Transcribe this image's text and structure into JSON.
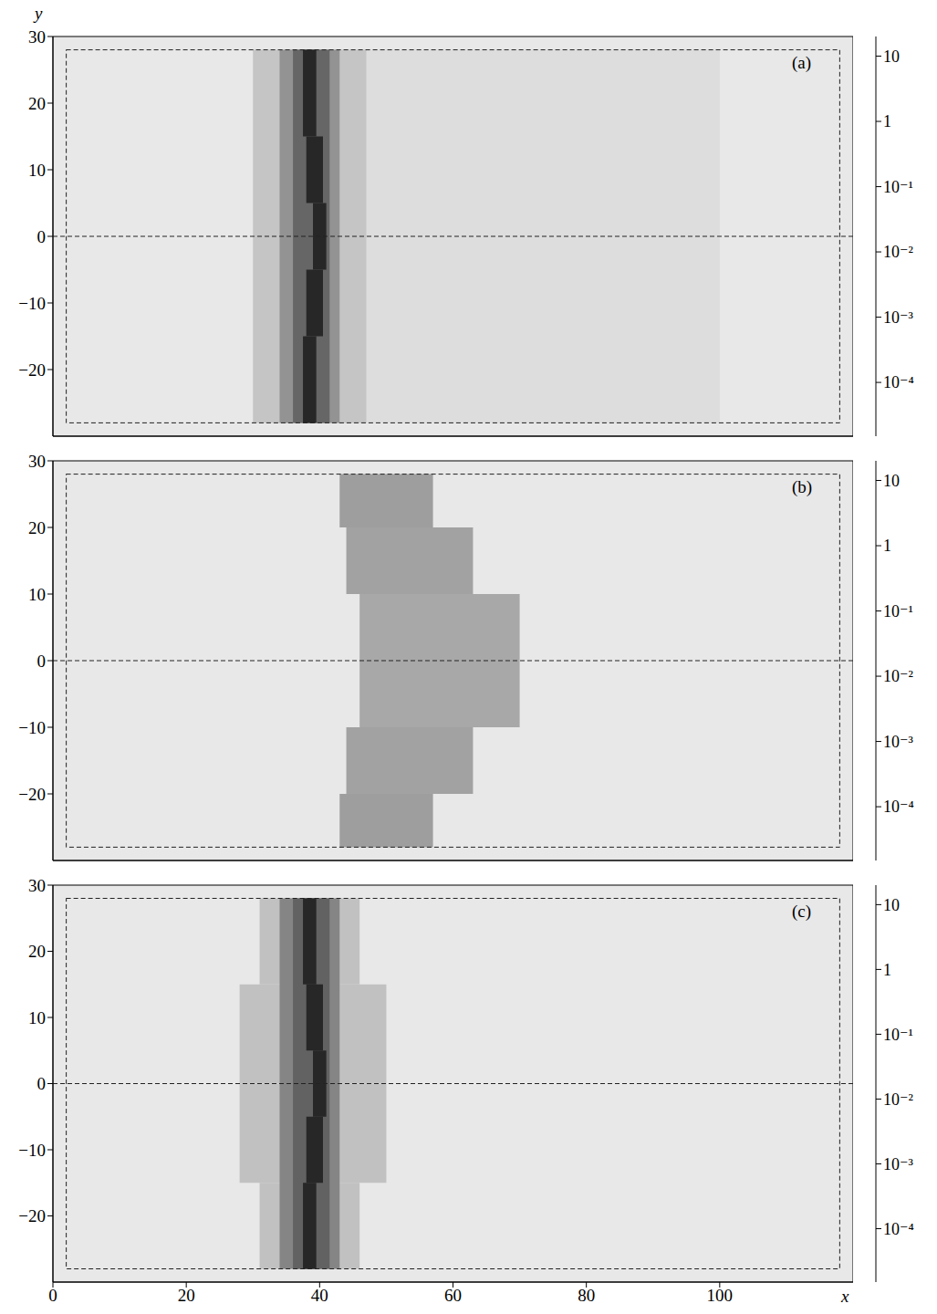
{
  "chart_data": [
    {
      "type": "heatmap",
      "annotation": "(a)",
      "ylabel": "y",
      "tick_labels": "y",
      "xlim": [
        0,
        120
      ],
      "xticks": [
        0,
        20,
        40,
        60,
        80,
        100
      ],
      "ylim": [
        -30,
        30
      ],
      "yticks": [
        {
          "value": -20,
          "label": "−20"
        },
        {
          "value": -10,
          "label": "−10"
        },
        0,
        10,
        20,
        30
      ],
      "frame": {
        "x": [
          2,
          118
        ],
        "y": [
          -28,
          28
        ]
      },
      "midline": 0,
      "colorbar": {
        "range": [
          1.5e-05,
          20
        ],
        "ticks": [
          {
            "value": 0.0001,
            "label": "10⁻⁴"
          },
          {
            "value": 0.001,
            "label": "10⁻³"
          },
          {
            "value": 0.01,
            "label": "10⁻²"
          },
          {
            "value": 0.1,
            "label": "10⁻¹"
          },
          1,
          10
        ]
      },
      "cells": [
        {
          "x": [
            40,
            100
          ],
          "y": [
            -28,
            28
          ],
          "value": 3e-05
        },
        {
          "x": [
            30,
            47
          ],
          "y": [
            -28,
            28
          ],
          "value": 0.00015
        },
        {
          "x": [
            34,
            43
          ],
          "y": [
            -28,
            28
          ],
          "value": 0.004
        },
        {
          "x": [
            36,
            41.5
          ],
          "y": [
            -28,
            28
          ],
          "value": 0.08
        },
        {
          "x": [
            37.5,
            39.5
          ],
          "y": [
            15,
            28
          ],
          "value": 5
        },
        {
          "x": [
            38,
            40.5
          ],
          "y": [
            5,
            15
          ],
          "value": 5
        },
        {
          "x": [
            39,
            41
          ],
          "y": [
            -5,
            5
          ],
          "value": 5
        },
        {
          "x": [
            38,
            40.5
          ],
          "y": [
            -15,
            -5
          ],
          "value": 5
        },
        {
          "x": [
            37.5,
            39.5
          ],
          "y": [
            -28,
            -15
          ],
          "value": 5
        }
      ]
    },
    {
      "type": "heatmap",
      "annotation": "(b)",
      "tick_labels": "y",
      "xlim": [
        0,
        120
      ],
      "xticks": [
        0,
        20,
        40,
        60,
        80,
        100
      ],
      "ylim": [
        -30,
        30
      ],
      "yticks": [
        {
          "value": -20,
          "label": "−20"
        },
        {
          "value": -10,
          "label": "−10"
        },
        0,
        10,
        20,
        30
      ],
      "frame": {
        "x": [
          2,
          118
        ],
        "y": [
          -28,
          28
        ]
      },
      "midline": 0,
      "colorbar": {
        "range": [
          1.5e-05,
          20
        ],
        "ticks": [
          {
            "value": 0.0001,
            "label": "10⁻⁴"
          },
          {
            "value": 0.001,
            "label": "10⁻³"
          },
          {
            "value": 0.01,
            "label": "10⁻²"
          },
          {
            "value": 0.1,
            "label": "10⁻¹"
          },
          1,
          10
        ]
      },
      "cells": [
        {
          "x": [
            43,
            57
          ],
          "y": [
            20,
            28
          ],
          "value": 0.002
        },
        {
          "x": [
            44,
            63
          ],
          "y": [
            10,
            20
          ],
          "value": 0.0015
        },
        {
          "x": [
            46,
            70
          ],
          "y": [
            0,
            10
          ],
          "value": 0.001
        },
        {
          "x": [
            46,
            70
          ],
          "y": [
            -10,
            0
          ],
          "value": 0.001
        },
        {
          "x": [
            44,
            63
          ],
          "y": [
            -20,
            -10
          ],
          "value": 0.0015
        },
        {
          "x": [
            43,
            57
          ],
          "y": [
            -28,
            -20
          ],
          "value": 0.002
        }
      ]
    },
    {
      "type": "heatmap",
      "annotation": "(c)",
      "xlabel": "x",
      "xlim": [
        0,
        120
      ],
      "xticks": [
        0,
        20,
        40,
        60,
        80,
        100
      ],
      "ylim": [
        -30,
        30
      ],
      "yticks": [
        {
          "value": -20,
          "label": "−20"
        },
        {
          "value": -10,
          "label": "−10"
        },
        0,
        10,
        20,
        30
      ],
      "frame": {
        "x": [
          2,
          118
        ],
        "y": [
          -28,
          28
        ]
      },
      "midline": 0,
      "colorbar": {
        "range": [
          1.5e-05,
          20
        ],
        "ticks": [
          {
            "value": 0.0001,
            "label": "10⁻⁴"
          },
          {
            "value": 0.001,
            "label": "10⁻³"
          },
          {
            "value": 0.01,
            "label": "10⁻²"
          },
          {
            "value": 0.1,
            "label": "10⁻¹"
          },
          1,
          10
        ]
      },
      "cells": [
        {
          "x": [
            31,
            46
          ],
          "y": [
            15,
            28
          ],
          "value": 0.0002
        },
        {
          "x": [
            28,
            50
          ],
          "y": [
            0,
            15
          ],
          "value": 0.0002
        },
        {
          "x": [
            28,
            50
          ],
          "y": [
            -15,
            0
          ],
          "value": 0.0002
        },
        {
          "x": [
            31,
            46
          ],
          "y": [
            -28,
            -15
          ],
          "value": 0.0002
        },
        {
          "x": [
            34,
            43
          ],
          "y": [
            -28,
            28
          ],
          "value": 0.01
        },
        {
          "x": [
            36,
            41.5
          ],
          "y": [
            -28,
            28
          ],
          "value": 0.1
        },
        {
          "x": [
            37.5,
            39.5
          ],
          "y": [
            15,
            28
          ],
          "value": 5
        },
        {
          "x": [
            38,
            40.5
          ],
          "y": [
            5,
            15
          ],
          "value": 5
        },
        {
          "x": [
            39,
            41
          ],
          "y": [
            -5,
            5
          ],
          "value": 5
        },
        {
          "x": [
            38,
            40.5
          ],
          "y": [
            -15,
            -5
          ],
          "value": 5
        },
        {
          "x": [
            37.5,
            39.5
          ],
          "y": [
            -28,
            -15
          ],
          "value": 5
        }
      ]
    }
  ]
}
